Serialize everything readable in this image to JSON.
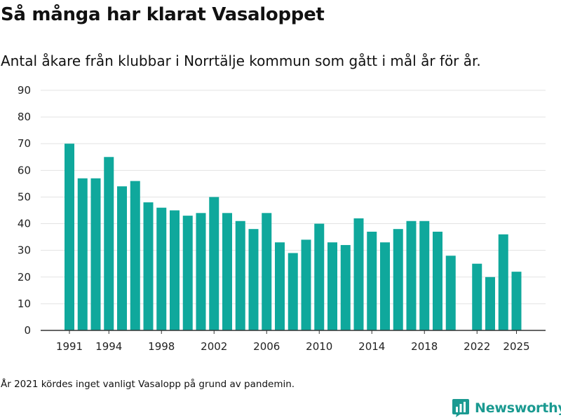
{
  "header": {
    "title": "Så många har klarat Vasaloppet",
    "subtitle": "Antal åkare från klubbar i Norrtälje kommun som gått i mål år för år."
  },
  "footer": {
    "note": "År 2021 kördes inget vanligt Vasalopp på grund av pandemin.",
    "brand": "Newsworthy"
  },
  "colors": {
    "bar": "#0fa89c",
    "grid": "#e3e3e3",
    "axis": "#333333",
    "brand": "#1b9a91"
  },
  "icons": {
    "brand_logo": "bar-chart-badge-icon"
  },
  "chart_data": {
    "type": "bar",
    "title": "Så många har klarat Vasaloppet",
    "xlabel": "",
    "ylabel": "",
    "ylim": [
      0,
      90
    ],
    "yticks": [
      0,
      10,
      20,
      30,
      40,
      50,
      60,
      70,
      80,
      90
    ],
    "xticks": [
      "1991",
      "1994",
      "1998",
      "2002",
      "2006",
      "2010",
      "2014",
      "2018",
      "2022",
      "2025"
    ],
    "grid": true,
    "categories": [
      1991,
      1992,
      1993,
      1994,
      1995,
      1996,
      1997,
      1998,
      1999,
      2000,
      2001,
      2002,
      2003,
      2004,
      2005,
      2006,
      2007,
      2008,
      2009,
      2010,
      2011,
      2012,
      2013,
      2014,
      2015,
      2016,
      2017,
      2018,
      2019,
      2020,
      2021,
      2022,
      2023,
      2024,
      2025
    ],
    "values": [
      70,
      57,
      57,
      65,
      54,
      56,
      48,
      46,
      45,
      43,
      44,
      50,
      44,
      41,
      38,
      44,
      33,
      29,
      34,
      40,
      33,
      32,
      42,
      37,
      33,
      38,
      41,
      41,
      37,
      28,
      null,
      25,
      20,
      36,
      22
    ]
  }
}
